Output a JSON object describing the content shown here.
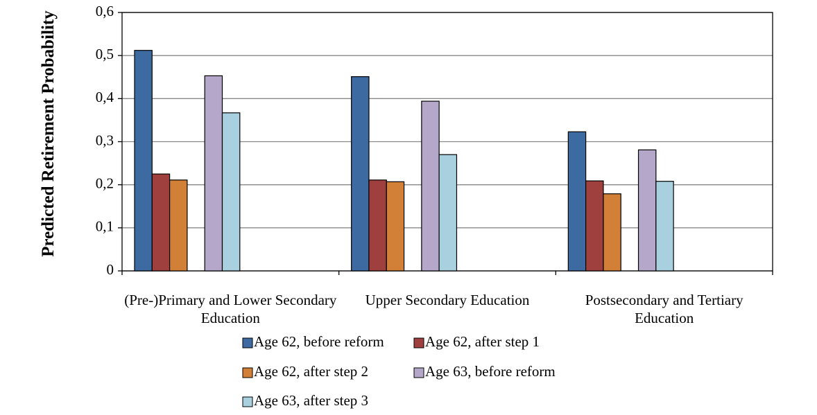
{
  "chart_data": {
    "type": "bar",
    "y_label": "Predicted Retirement Probability",
    "categories": [
      "(Pre-)Primary and Lower Secondary Education",
      "Upper Secondary Education",
      "Postsecondary and Tertiary Education"
    ],
    "series": [
      {
        "name": "Age 62, before reform",
        "color": "#3d6aa0",
        "values": [
          0.512,
          0.451,
          0.323
        ]
      },
      {
        "name": "Age 62, after step 1",
        "color": "#a0403e",
        "values": [
          0.225,
          0.211,
          0.209
        ]
      },
      {
        "name": "Age 62, after step 2",
        "color": "#d28038",
        "values": [
          0.211,
          0.207,
          0.179
        ]
      },
      {
        "name": "Age 63, before reform",
        "color": "#b5a7c9",
        "values": [
          0.453,
          0.394,
          0.281
        ]
      },
      {
        "name": "Age 63, after step 3",
        "color": "#a8d0de",
        "values": [
          0.367,
          0.27,
          0.208
        ]
      }
    ],
    "ylim": [
      0,
      0.6
    ],
    "yticks": [
      0,
      {
        "value": 0.1,
        "label": "0,1"
      },
      {
        "value": 0.2,
        "label": "0,2"
      },
      {
        "value": 0.3,
        "label": "0,3"
      },
      {
        "value": 0.4,
        "label": "0,4"
      },
      {
        "value": 0.5,
        "label": "0,5"
      },
      {
        "value": 0.6,
        "label": "0,6"
      }
    ],
    "grid": true,
    "legend": "bottom"
  }
}
